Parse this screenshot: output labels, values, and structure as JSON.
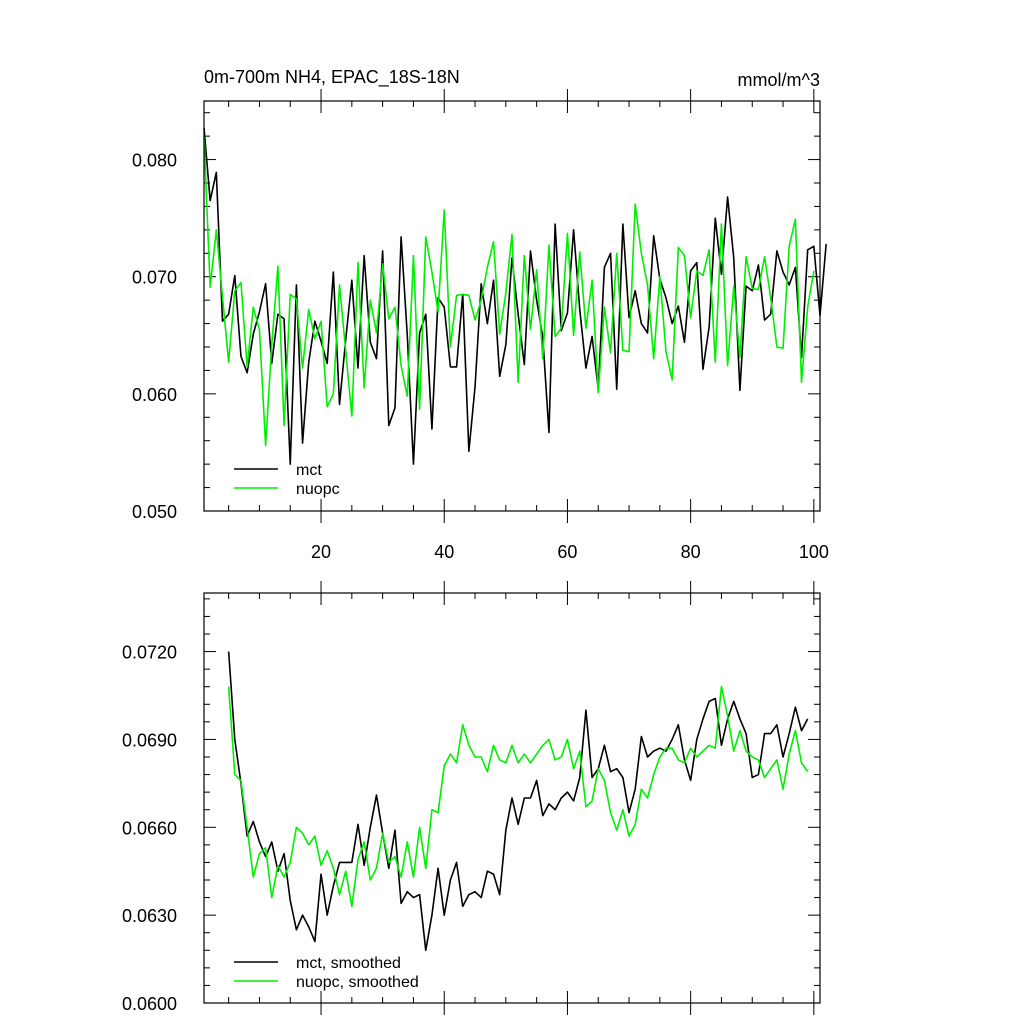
{
  "colors": {
    "mct": "#000000",
    "nuopc": "#00ee00"
  },
  "chart_data": [
    {
      "type": "line",
      "title": "0m-700m NH4, EPAC_18S-18N",
      "units": "mmol/m^3",
      "xlim": [
        1,
        101
      ],
      "ylim": [
        0.05,
        0.085
      ],
      "yticks": [
        0.05,
        0.06,
        0.07,
        0.08
      ],
      "ytick_labels": [
        "0.050",
        "0.060",
        "0.070",
        "0.080"
      ],
      "xticks": [
        20,
        40,
        60,
        80,
        100
      ],
      "xtick_labels": [
        "20",
        "40",
        "60",
        "80",
        "100"
      ],
      "legend": "bottom-left",
      "series": [
        {
          "name": "mct",
          "color": "#000000",
          "x_start": 1,
          "values": [
            0.0827,
            0.0765,
            0.0789,
            0.0662,
            0.0668,
            0.0701,
            0.0632,
            0.0618,
            0.0651,
            0.067,
            0.0694,
            0.0626,
            0.0668,
            0.0664,
            0.054,
            0.0693,
            0.0558,
            0.0627,
            0.0662,
            0.0645,
            0.0626,
            0.0704,
            0.0591,
            0.0646,
            0.0697,
            0.0622,
            0.0718,
            0.0644,
            0.063,
            0.0722,
            0.0573,
            0.0588,
            0.0734,
            0.065,
            0.054,
            0.0652,
            0.0668,
            0.057,
            0.0682,
            0.0674,
            0.0623,
            0.0623,
            0.0685,
            0.0551,
            0.0606,
            0.0694,
            0.066,
            0.0697,
            0.0615,
            0.0642,
            0.0716,
            0.0668,
            0.0625,
            0.0722,
            0.068,
            0.0648,
            0.0567,
            0.0745,
            0.0654,
            0.0669,
            0.074,
            0.0672,
            0.0622,
            0.0649,
            0.0604,
            0.0708,
            0.072,
            0.0604,
            0.0745,
            0.0665,
            0.0688,
            0.066,
            0.0652,
            0.0735,
            0.0698,
            0.0682,
            0.066,
            0.0675,
            0.0644,
            0.0705,
            0.0712,
            0.0621,
            0.0657,
            0.075,
            0.0702,
            0.0768,
            0.0716,
            0.0603,
            0.0692,
            0.0688,
            0.071,
            0.0663,
            0.0668,
            0.0722,
            0.0704,
            0.0693,
            0.0708,
            0.0631,
            0.0723,
            0.0726,
            0.0667,
            0.0728
          ]
        },
        {
          "name": "nuopc",
          "color": "#00ee00",
          "x_start": 1,
          "values": [
            0.082,
            0.0691,
            0.074,
            0.0683,
            0.0627,
            0.0688,
            0.0695,
            0.0623,
            0.0674,
            0.0655,
            0.0556,
            0.0642,
            0.0709,
            0.0573,
            0.0685,
            0.0681,
            0.0622,
            0.0672,
            0.0647,
            0.0662,
            0.0589,
            0.06,
            0.0693,
            0.0637,
            0.0581,
            0.0712,
            0.0605,
            0.068,
            0.0652,
            0.0711,
            0.0664,
            0.0674,
            0.0624,
            0.0598,
            0.0718,
            0.0587,
            0.0734,
            0.0704,
            0.067,
            0.0757,
            0.064,
            0.0684,
            0.0685,
            0.0684,
            0.0663,
            0.068,
            0.0708,
            0.073,
            0.0651,
            0.0686,
            0.0736,
            0.061,
            0.0718,
            0.0655,
            0.0706,
            0.063,
            0.0727,
            0.0649,
            0.0656,
            0.0737,
            0.065,
            0.0721,
            0.0656,
            0.0697,
            0.0601,
            0.0674,
            0.0635,
            0.072,
            0.0637,
            0.0636,
            0.0762,
            0.072,
            0.0693,
            0.063,
            0.07,
            0.0636,
            0.0612,
            0.0725,
            0.0718,
            0.0665,
            0.0705,
            0.0701,
            0.0723,
            0.0627,
            0.0745,
            0.0624,
            0.0692,
            0.0631,
            0.0717,
            0.069,
            0.0689,
            0.0717,
            0.0682,
            0.064,
            0.0639,
            0.0726,
            0.0749,
            0.061,
            0.0674,
            0.0705
          ]
        }
      ]
    },
    {
      "type": "line",
      "title": "",
      "units": "",
      "xlim": [
        1,
        101
      ],
      "ylim": [
        0.06,
        0.074
      ],
      "yticks": [
        0.06,
        0.063,
        0.066,
        0.069,
        0.072
      ],
      "ytick_labels": [
        "0.0600",
        "0.0630",
        "0.0660",
        "0.0690",
        "0.0720"
      ],
      "xticks": [
        20,
        40,
        60,
        80,
        100
      ],
      "xtick_labels": [],
      "legend": "bottom-left",
      "series": [
        {
          "name": "mct, smoothed",
          "color": "#000000",
          "x_start": 5,
          "values": [
            0.072,
            0.069,
            0.0675,
            0.0657,
            0.0662,
            0.0655,
            0.065,
            0.0655,
            0.0645,
            0.0651,
            0.0635,
            0.0625,
            0.063,
            0.0626,
            0.0621,
            0.0644,
            0.063,
            0.064,
            0.0648,
            0.0648,
            0.0648,
            0.0661,
            0.0647,
            0.066,
            0.0671,
            0.0658,
            0.0646,
            0.0659,
            0.0634,
            0.0638,
            0.0636,
            0.0637,
            0.0618,
            0.063,
            0.0646,
            0.063,
            0.0642,
            0.0648,
            0.0633,
            0.0637,
            0.0638,
            0.0636,
            0.0645,
            0.0644,
            0.0637,
            0.0659,
            0.067,
            0.0661,
            0.067,
            0.067,
            0.0676,
            0.0664,
            0.0668,
            0.0666,
            0.067,
            0.0672,
            0.0669,
            0.0677,
            0.07,
            0.0677,
            0.068,
            0.0688,
            0.0679,
            0.068,
            0.0677,
            0.0665,
            0.0673,
            0.0691,
            0.0684,
            0.0686,
            0.0687,
            0.0686,
            0.069,
            0.0695,
            0.0683,
            0.0676,
            0.069,
            0.0697,
            0.0703,
            0.0704,
            0.0688,
            0.0697,
            0.0703,
            0.0697,
            0.0692,
            0.0677,
            0.0678,
            0.0692,
            0.0692,
            0.0695,
            0.0684,
            0.0692,
            0.0701,
            0.0693,
            0.0697
          ]
        },
        {
          "name": "nuopc, smoothed",
          "color": "#00ee00",
          "x_start": 5,
          "values": [
            0.0708,
            0.0678,
            0.0676,
            0.066,
            0.0643,
            0.0651,
            0.0653,
            0.0636,
            0.0647,
            0.0643,
            0.0648,
            0.066,
            0.0658,
            0.0654,
            0.0657,
            0.0647,
            0.0652,
            0.0646,
            0.0637,
            0.0645,
            0.0633,
            0.0649,
            0.0655,
            0.0642,
            0.0646,
            0.0658,
            0.0648,
            0.065,
            0.0643,
            0.0655,
            0.0643,
            0.066,
            0.0646,
            0.0666,
            0.0665,
            0.0681,
            0.0685,
            0.0682,
            0.0695,
            0.0688,
            0.0684,
            0.0684,
            0.0679,
            0.0688,
            0.0683,
            0.0682,
            0.0688,
            0.0682,
            0.0685,
            0.0682,
            0.0685,
            0.0688,
            0.069,
            0.0683,
            0.0684,
            0.069,
            0.068,
            0.0686,
            0.0667,
            0.0669,
            0.068,
            0.0676,
            0.0665,
            0.0659,
            0.0666,
            0.0657,
            0.0661,
            0.0673,
            0.067,
            0.0678,
            0.0684,
            0.0687,
            0.0687,
            0.0683,
            0.0682,
            0.0687,
            0.0684,
            0.0686,
            0.0688,
            0.0687,
            0.0708,
            0.0698,
            0.0686,
            0.0693,
            0.0686,
            0.0684,
            0.0683,
            0.0677,
            0.068,
            0.0683,
            0.0673,
            0.0685,
            0.0693,
            0.0682,
            0.0679
          ]
        }
      ]
    }
  ]
}
